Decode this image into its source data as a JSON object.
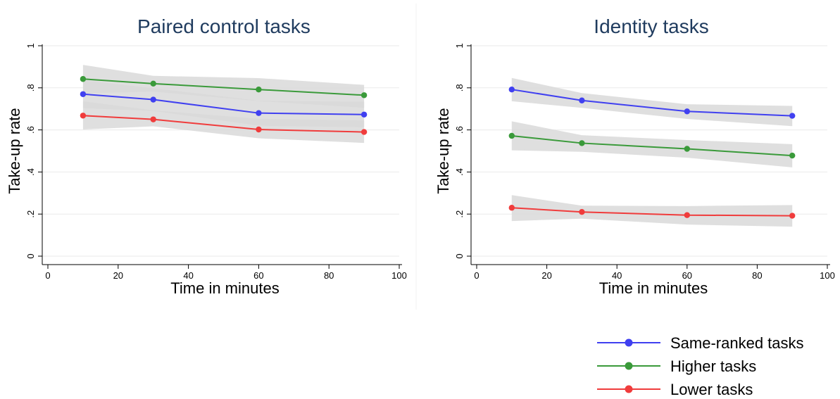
{
  "chart_data": [
    {
      "type": "line",
      "title": "Paired control tasks",
      "xlabel": "Time in minutes",
      "ylabel": "Take-up rate",
      "xlim": [
        0,
        100
      ],
      "ylim": [
        0,
        1
      ],
      "xticks": [
        0,
        20,
        40,
        60,
        80,
        100
      ],
      "xtick_labels": [
        "0",
        "20",
        "40",
        "60",
        "80",
        "100"
      ],
      "yticks": [
        0,
        0.2,
        0.4,
        0.6,
        0.8,
        1
      ],
      "ytick_labels": [
        "0",
        ".2",
        ".4",
        ".6",
        ".8",
        "1"
      ],
      "grid": true,
      "x": [
        10,
        30,
        60,
        90
      ],
      "series": [
        {
          "name": "Same-ranked tasks",
          "color": "#4040f0",
          "values": [
            0.77,
            0.744,
            0.68,
            0.673
          ],
          "ci_low": [
            0.703,
            0.69,
            0.62,
            0.612
          ],
          "ci_high": [
            0.836,
            0.798,
            0.739,
            0.734
          ]
        },
        {
          "name": "Higher tasks",
          "color": "#3a9a3a",
          "values": [
            0.842,
            0.82,
            0.792,
            0.765
          ],
          "ci_low": [
            0.774,
            0.782,
            0.737,
            0.705
          ],
          "ci_high": [
            0.909,
            0.857,
            0.846,
            0.814
          ]
        },
        {
          "name": "Lower tasks",
          "color": "#f03c3c",
          "values": [
            0.668,
            0.65,
            0.602,
            0.59
          ],
          "ci_low": [
            0.602,
            0.617,
            0.56,
            0.538
          ],
          "ci_high": [
            0.736,
            0.693,
            0.653,
            0.645
          ]
        }
      ]
    },
    {
      "type": "line",
      "title": "Identity tasks",
      "xlabel": "Time in minutes",
      "ylabel": "Take-up rate",
      "xlim": [
        0,
        100
      ],
      "ylim": [
        0,
        1
      ],
      "xticks": [
        0,
        20,
        40,
        60,
        80,
        100
      ],
      "xtick_labels": [
        "0",
        "20",
        "40",
        "60",
        "80",
        "100"
      ],
      "yticks": [
        0,
        0.2,
        0.4,
        0.6,
        0.8,
        1
      ],
      "ytick_labels": [
        "0",
        ".2",
        ".4",
        ".6",
        ".8",
        "1"
      ],
      "grid": true,
      "x": [
        10,
        30,
        60,
        90
      ],
      "series": [
        {
          "name": "Same-ranked tasks",
          "color": "#4040f0",
          "values": [
            0.792,
            0.74,
            0.688,
            0.667
          ],
          "ci_low": [
            0.736,
            0.705,
            0.652,
            0.618
          ],
          "ci_high": [
            0.847,
            0.775,
            0.722,
            0.714
          ]
        },
        {
          "name": "Higher tasks",
          "color": "#3a9a3a",
          "values": [
            0.572,
            0.537,
            0.51,
            0.478
          ],
          "ci_low": [
            0.503,
            0.496,
            0.468,
            0.422
          ],
          "ci_high": [
            0.641,
            0.575,
            0.552,
            0.532
          ]
        },
        {
          "name": "Lower tasks",
          "color": "#f03c3c",
          "values": [
            0.23,
            0.21,
            0.195,
            0.192
          ],
          "ci_low": [
            0.167,
            0.178,
            0.15,
            0.14
          ],
          "ci_high": [
            0.29,
            0.24,
            0.238,
            0.243
          ]
        }
      ]
    }
  ],
  "legend": {
    "placement": "bottom-right",
    "items": [
      {
        "label": "Same-ranked tasks",
        "color": "#4040f0"
      },
      {
        "label": "Higher tasks",
        "color": "#3a9a3a"
      },
      {
        "label": "Lower tasks",
        "color": "#f03c3c"
      }
    ]
  },
  "colors": {
    "ci_band": "#d9d9d9",
    "grid": "#eaeaea",
    "title": "#1f3b5e",
    "axis": "#000000"
  }
}
